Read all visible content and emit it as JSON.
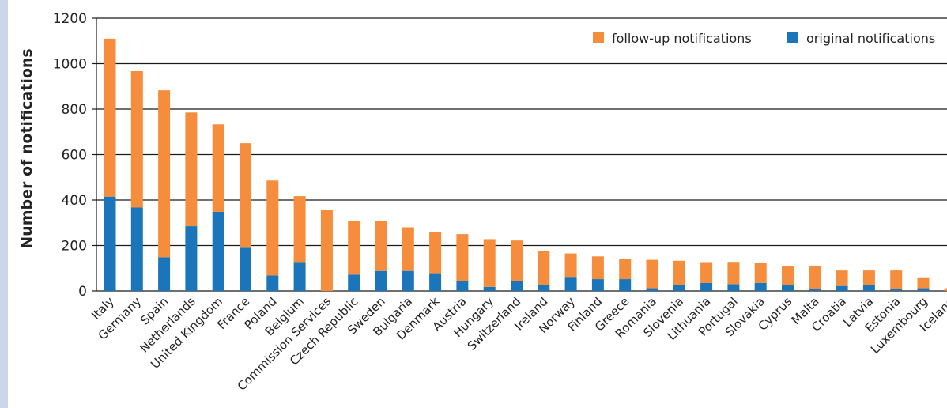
{
  "chart_data": {
    "type": "bar",
    "stacked": true,
    "ylabel": "Number of notifications",
    "xlabel": "",
    "ylim": [
      0,
      1200
    ],
    "yticks": [
      0,
      200,
      400,
      600,
      800,
      1000,
      1200
    ],
    "grid": true,
    "legend_position": "top-right",
    "categories": [
      "Italy",
      "Germany",
      "Spain",
      "Netherlands",
      "United Kingdom",
      "France",
      "Poland",
      "Belgium",
      "Commission Services",
      "Czech Republic",
      "Sweden",
      "Bulgaria",
      "Denmark",
      "Austria",
      "Hungary",
      "Switzerland",
      "Ireland",
      "Norway",
      "Finland",
      "Greece",
      "Romania",
      "Slovenia",
      "Lithuania",
      "Portugal",
      "Slovakia",
      "Cyprus",
      "Malta",
      "Croatia",
      "Latvia",
      "Estonia",
      "Luxembourg",
      "Iceland"
    ],
    "series": [
      {
        "name": "original notifications",
        "color": "#1b75bb",
        "values": [
          415,
          367,
          148,
          285,
          348,
          190,
          68,
          127,
          0,
          72,
          88,
          88,
          78,
          42,
          18,
          42,
          25,
          62,
          52,
          52,
          12,
          25,
          35,
          30,
          35,
          25,
          10,
          22,
          25,
          10,
          12,
          0
        ]
      },
      {
        "name": "follow-up notifications",
        "color": "#f68d3d",
        "values": [
          695,
          600,
          735,
          500,
          385,
          460,
          418,
          290,
          355,
          235,
          220,
          192,
          182,
          208,
          210,
          180,
          150,
          103,
          100,
          90,
          125,
          108,
          92,
          98,
          88,
          85,
          100,
          68,
          65,
          80,
          48,
          12
        ]
      }
    ],
    "legend_order": [
      "follow-up notifications",
      "original notifications"
    ]
  }
}
